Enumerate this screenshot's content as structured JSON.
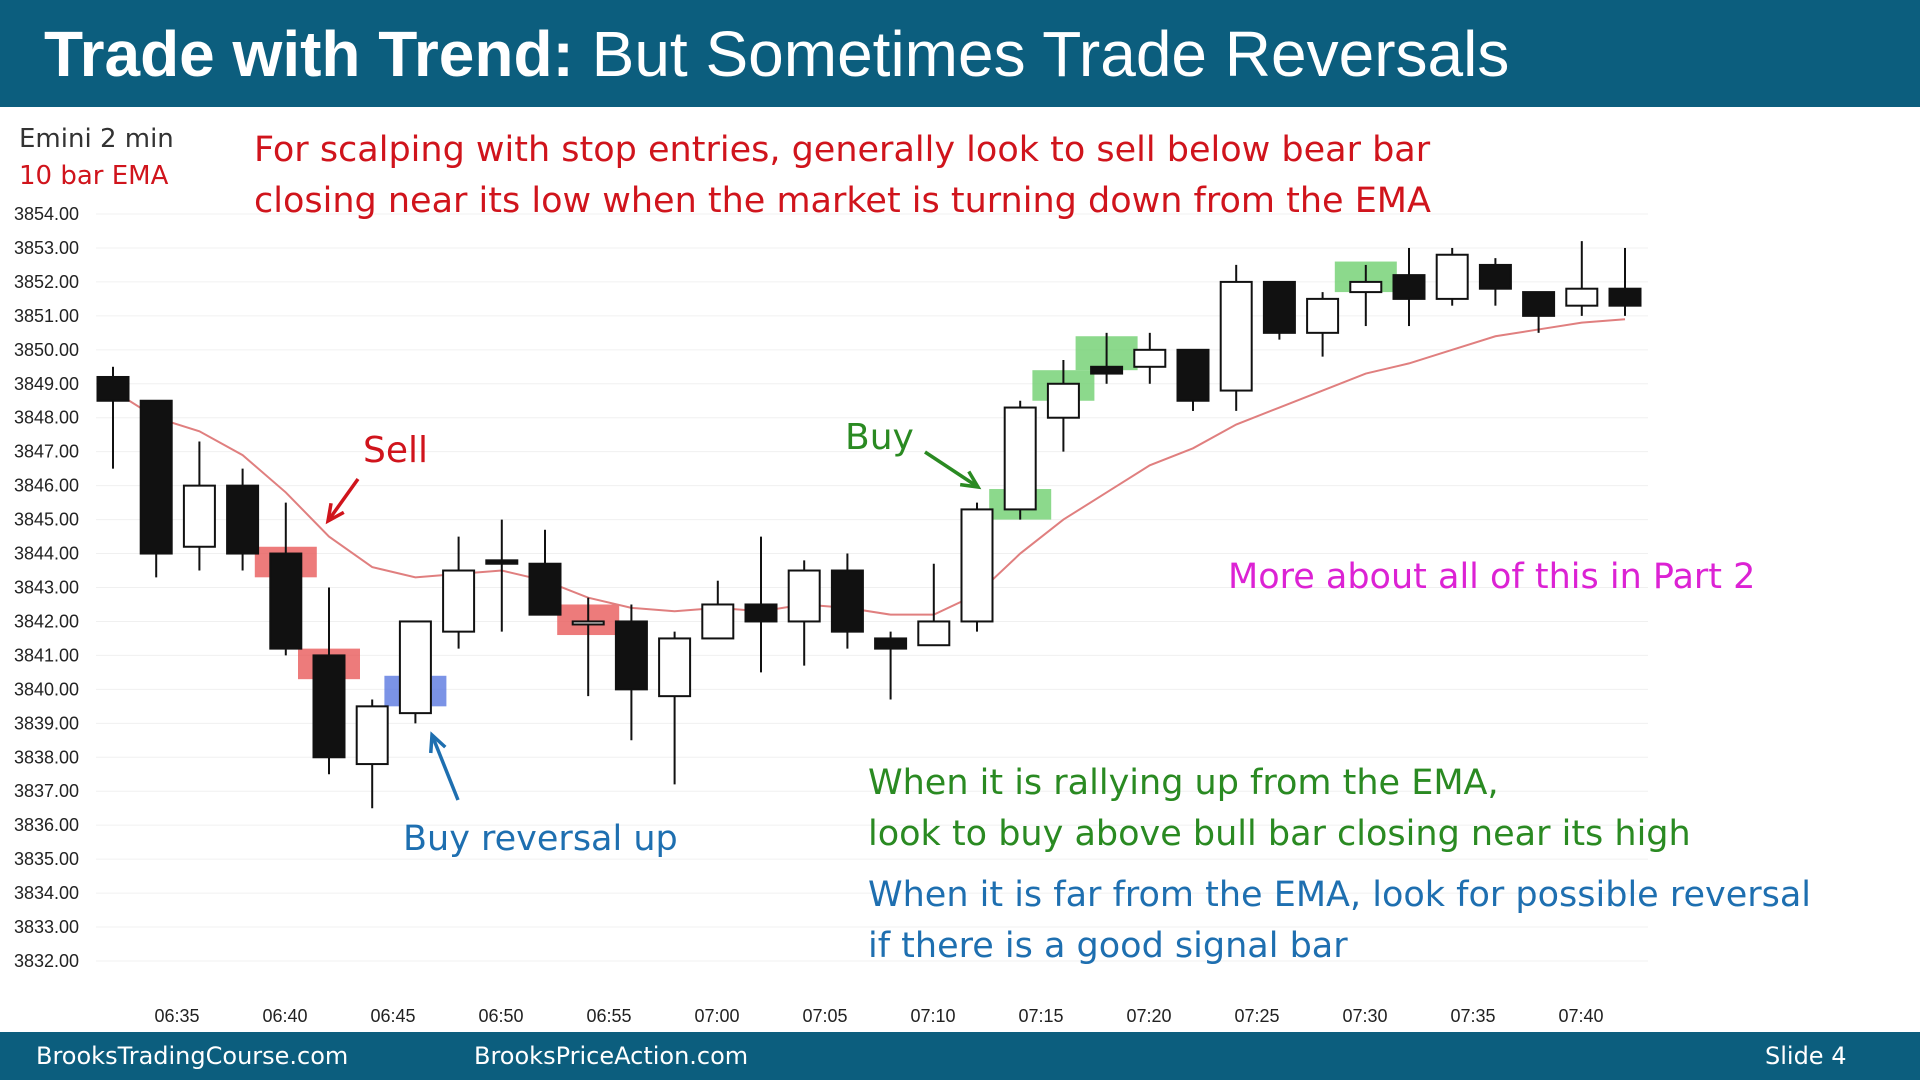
{
  "header": {
    "title_bold": "Trade with Trend:",
    "title_rest": "But Sometimes Trade Reversals"
  },
  "footer": {
    "left": "BrooksTradingCourse.com",
    "middle": "BrooksPriceAction.com",
    "slide": "Slide  4"
  },
  "legend": {
    "instrument": "Emini 2 min",
    "ema": "10 bar EMA"
  },
  "notes": {
    "top_line1": "For scalping with stop entries, generally look to sell below bear bar",
    "top_line2": "closing near its low when the market is turning down from the EMA",
    "sell": "Sell",
    "buy": "Buy",
    "buy_reversal": "Buy reversal up",
    "part2": "More about all of this in Part 2",
    "rally_line1": "When it is rallying up from the EMA,",
    "rally_line2": "look to buy above bull bar closing near its high",
    "far_line1": "When it is far from the EMA, look for possible reversal",
    "far_line2": "if there is a good signal bar"
  },
  "colors": {
    "header_bg": "#0c5e7e",
    "sell_text": "#d0141c",
    "buy_text": "#2a8a22",
    "reversal_text": "#1e6fb0",
    "part2_text": "#dc22d4",
    "ema_line": "#e07f7f",
    "sell_highlight": "#e85a5a",
    "buy_highlight": "#6fd06f",
    "reversal_highlight": "#5a78e0"
  },
  "chart_data": {
    "type": "candlestick",
    "ylim": [
      3832,
      3854
    ],
    "y_ticks": [
      "3854.00",
      "3853.00",
      "3852.00",
      "3851.00",
      "3850.00",
      "3849.00",
      "3848.00",
      "3847.00",
      "3846.00",
      "3845.00",
      "3844.00",
      "3843.00",
      "3842.00",
      "3841.00",
      "3840.00",
      "3839.00",
      "3838.00",
      "3837.00",
      "3836.00",
      "3835.00",
      "3834.00",
      "3833.00",
      "3832.00"
    ],
    "x_ticks": [
      "06:35",
      "06:40",
      "06:45",
      "06:50",
      "06:55",
      "07:00",
      "07:05",
      "07:10",
      "07:15",
      "07:20",
      "07:25",
      "07:30",
      "07:35",
      "07:40"
    ],
    "grid": true,
    "bars": [
      {
        "time": "06:32",
        "open": 3849.2,
        "high": 3849.5,
        "low": 3846.5,
        "close": 3848.5
      },
      {
        "time": "06:34",
        "open": 3848.5,
        "high": 3848.5,
        "low": 3843.3,
        "close": 3844.0
      },
      {
        "time": "06:36",
        "open": 3844.2,
        "high": 3847.3,
        "low": 3843.5,
        "close": 3846.0
      },
      {
        "time": "06:38",
        "open": 3846.0,
        "high": 3846.5,
        "low": 3843.5,
        "close": 3844.0
      },
      {
        "time": "06:40",
        "open": 3844.0,
        "high": 3845.5,
        "low": 3841.0,
        "close": 3841.2
      },
      {
        "time": "06:42",
        "open": 3841.0,
        "high": 3843.0,
        "low": 3837.5,
        "close": 3838.0
      },
      {
        "time": "06:44",
        "open": 3837.8,
        "high": 3839.7,
        "low": 3836.5,
        "close": 3839.5
      },
      {
        "time": "06:46",
        "open": 3839.3,
        "high": 3842.0,
        "low": 3839.0,
        "close": 3842.0
      },
      {
        "time": "06:48",
        "open": 3841.7,
        "high": 3844.5,
        "low": 3841.2,
        "close": 3843.5
      },
      {
        "time": "06:50",
        "open": 3843.8,
        "high": 3845.0,
        "low": 3841.7,
        "close": 3843.7
      },
      {
        "time": "06:52",
        "open": 3843.7,
        "high": 3844.7,
        "low": 3842.2,
        "close": 3842.2
      },
      {
        "time": "06:54",
        "open": 3842.0,
        "high": 3842.7,
        "low": 3839.8,
        "close": 3842.0
      },
      {
        "time": "06:56",
        "open": 3842.0,
        "high": 3842.5,
        "low": 3838.5,
        "close": 3840.0
      },
      {
        "time": "06:58",
        "open": 3839.8,
        "high": 3841.7,
        "low": 3837.2,
        "close": 3841.5
      },
      {
        "time": "07:00",
        "open": 3841.5,
        "high": 3843.2,
        "low": 3841.5,
        "close": 3842.5
      },
      {
        "time": "07:02",
        "open": 3842.5,
        "high": 3844.5,
        "low": 3840.5,
        "close": 3842.0
      },
      {
        "time": "07:04",
        "open": 3842.0,
        "high": 3843.8,
        "low": 3840.7,
        "close": 3843.5
      },
      {
        "time": "07:06",
        "open": 3843.5,
        "high": 3844.0,
        "low": 3841.2,
        "close": 3841.7
      },
      {
        "time": "07:08",
        "open": 3841.5,
        "high": 3841.7,
        "low": 3839.7,
        "close": 3841.2
      },
      {
        "time": "07:10",
        "open": 3841.3,
        "high": 3843.7,
        "low": 3841.3,
        "close": 3842.0
      },
      {
        "time": "07:12",
        "open": 3842.0,
        "high": 3845.5,
        "low": 3841.7,
        "close": 3845.3
      },
      {
        "time": "07:14",
        "open": 3845.3,
        "high": 3848.5,
        "low": 3845.0,
        "close": 3848.3
      },
      {
        "time": "07:16",
        "open": 3848.0,
        "high": 3849.7,
        "low": 3847.0,
        "close": 3849.0
      },
      {
        "time": "07:18",
        "open": 3849.5,
        "high": 3850.5,
        "low": 3849.0,
        "close": 3849.3
      },
      {
        "time": "07:20",
        "open": 3849.5,
        "high": 3850.5,
        "low": 3849.0,
        "close": 3850.0
      },
      {
        "time": "07:22",
        "open": 3850.0,
        "high": 3850.0,
        "low": 3848.2,
        "close": 3848.5
      },
      {
        "time": "07:24",
        "open": 3848.8,
        "high": 3852.5,
        "low": 3848.2,
        "close": 3852.0
      },
      {
        "time": "07:26",
        "open": 3852.0,
        "high": 3852.0,
        "low": 3850.3,
        "close": 3850.5
      },
      {
        "time": "07:28",
        "open": 3850.5,
        "high": 3851.7,
        "low": 3849.8,
        "close": 3851.5
      },
      {
        "time": "07:30",
        "open": 3851.7,
        "high": 3852.5,
        "low": 3850.7,
        "close": 3852.0
      },
      {
        "time": "07:32",
        "open": 3852.2,
        "high": 3853.0,
        "low": 3850.7,
        "close": 3851.5
      },
      {
        "time": "07:34",
        "open": 3851.5,
        "high": 3853.0,
        "low": 3851.3,
        "close": 3852.8
      },
      {
        "time": "07:36",
        "open": 3852.5,
        "high": 3852.7,
        "low": 3851.3,
        "close": 3851.8
      },
      {
        "time": "07:38",
        "open": 3851.7,
        "high": 3851.7,
        "low": 3850.5,
        "close": 3851.0
      },
      {
        "time": "07:40",
        "open": 3851.3,
        "high": 3853.2,
        "low": 3851.0,
        "close": 3851.8
      },
      {
        "time": "07:42",
        "open": 3851.8,
        "high": 3853.0,
        "low": 3851.0,
        "close": 3851.3
      }
    ],
    "ema": [
      3848.8,
      3848.0,
      3847.6,
      3846.9,
      3845.8,
      3844.5,
      3843.6,
      3843.3,
      3843.4,
      3843.5,
      3843.2,
      3842.7,
      3842.4,
      3842.3,
      3842.4,
      3842.3,
      3842.5,
      3842.4,
      3842.2,
      3842.2,
      3842.8,
      3844.0,
      3845.0,
      3845.8,
      3846.6,
      3847.1,
      3847.8,
      3848.3,
      3848.8,
      3849.3,
      3849.6,
      3850.0,
      3850.4,
      3850.6,
      3850.8,
      3850.9
    ]
  },
  "highlights": [
    {
      "bar": 4,
      "kind": "sell",
      "price_lo": 3843.3,
      "price_hi": 3844.2
    },
    {
      "bar": 5,
      "kind": "sell",
      "price_lo": 3840.3,
      "price_hi": 3841.2
    },
    {
      "bar": 7,
      "kind": "reversal",
      "price_lo": 3839.5,
      "price_hi": 3840.4
    },
    {
      "bar": 11,
      "kind": "sell",
      "price_lo": 3841.6,
      "price_hi": 3842.5
    },
    {
      "bar": 21,
      "kind": "buy",
      "price_lo": 3845.0,
      "price_hi": 3845.9
    },
    {
      "bar": 22,
      "kind": "buy",
      "price_lo": 3848.5,
      "price_hi": 3849.4
    },
    {
      "bar": 23,
      "kind": "buy",
      "price_lo": 3849.4,
      "price_hi": 3850.4
    },
    {
      "bar": 29,
      "kind": "buy",
      "price_lo": 3851.7,
      "price_hi": 3852.6
    }
  ]
}
